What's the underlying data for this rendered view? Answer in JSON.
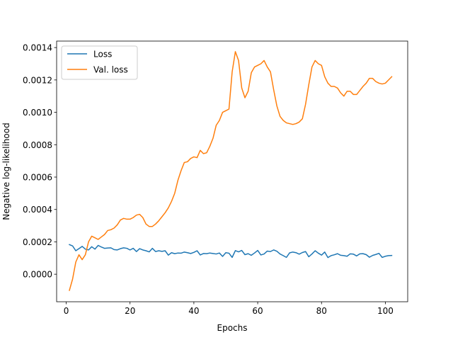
{
  "chart_data": {
    "type": "line",
    "title": "",
    "xlabel": "Epochs",
    "ylabel": "Negative log-likelihood",
    "xlim": [
      -3,
      107
    ],
    "ylim": [
      -0.00017,
      0.00144
    ],
    "xticks": [
      0,
      20,
      40,
      60,
      80,
      100
    ],
    "yticks": [
      0.0,
      0.0002,
      0.0004,
      0.0006,
      0.0008,
      0.001,
      0.0012,
      0.0014
    ],
    "ytick_labels": [
      "0.0000",
      "0.0002",
      "0.0004",
      "0.0006",
      "0.0008",
      "0.0010",
      "0.0012",
      "0.0014"
    ],
    "grid": false,
    "legend_position": "top-left",
    "series": [
      {
        "name": "Loss",
        "color": "#1f77b4",
        "x": [
          1,
          2,
          3,
          4,
          5,
          6,
          7,
          8,
          9,
          10,
          11,
          12,
          13,
          14,
          15,
          16,
          17,
          18,
          19,
          20,
          21,
          22,
          23,
          24,
          25,
          26,
          27,
          28,
          29,
          30,
          31,
          32,
          33,
          34,
          35,
          36,
          37,
          38,
          39,
          40,
          41,
          42,
          43,
          44,
          45,
          46,
          47,
          48,
          49,
          50,
          51,
          52,
          53,
          54,
          55,
          56,
          57,
          58,
          59,
          60,
          61,
          62,
          63,
          64,
          65,
          66,
          67,
          68,
          69,
          70,
          71,
          72,
          73,
          74,
          75,
          76,
          77,
          78,
          79,
          80,
          81,
          82,
          83,
          84,
          85,
          86,
          87,
          88,
          89,
          90,
          91,
          92,
          93,
          94,
          95,
          96,
          97,
          98,
          99,
          100,
          101,
          102
        ],
        "y": [
          0.000183,
          0.000175,
          0.000145,
          0.000158,
          0.000172,
          0.000155,
          0.00015,
          0.00017,
          0.000155,
          0.000178,
          0.000168,
          0.00016,
          0.000162,
          0.000163,
          0.000152,
          0.00015,
          0.000158,
          0.000163,
          0.00016,
          0.00015,
          0.00016,
          0.00014,
          0.000158,
          0.00015,
          0.000145,
          0.000138,
          0.00016,
          0.00014,
          0.000145,
          0.000141,
          0.000145,
          0.000118,
          0.000133,
          0.000127,
          0.000131,
          0.00013,
          0.000137,
          0.000133,
          0.000128,
          0.000135,
          0.000145,
          0.000119,
          0.000128,
          0.000127,
          0.000131,
          0.000128,
          0.000125,
          0.000131,
          0.00011,
          0.000133,
          0.00013,
          0.000104,
          0.000146,
          0.000138,
          0.000147,
          0.000121,
          0.000127,
          0.000117,
          0.000131,
          0.000147,
          0.000119,
          0.000125,
          0.000143,
          0.00014,
          0.00015,
          0.000142,
          0.000125,
          0.000115,
          0.000104,
          0.000132,
          0.000137,
          0.000133,
          0.000124,
          0.000134,
          0.00014,
          0.000108,
          0.000125,
          0.000145,
          0.00013,
          0.000118,
          0.000137,
          0.000103,
          0.000115,
          0.00012,
          0.000127,
          0.000117,
          0.000115,
          0.000111,
          0.000126,
          0.000124,
          0.000113,
          0.000126,
          0.000127,
          0.000121,
          0.000105,
          0.000116,
          0.000122,
          0.000129,
          0.000104,
          0.000111,
          0.000115,
          0.000116
        ],
        "note": ""
      },
      {
        "name": "Val. loss",
        "color": "#ff7f0e",
        "x": [
          1,
          2,
          3,
          4,
          5,
          6,
          7,
          8,
          9,
          10,
          11,
          12,
          13,
          14,
          15,
          16,
          17,
          18,
          19,
          20,
          21,
          22,
          23,
          24,
          25,
          26,
          27,
          28,
          29,
          30,
          31,
          32,
          33,
          34,
          35,
          36,
          37,
          38,
          39,
          40,
          41,
          42,
          43,
          44,
          45,
          46,
          47,
          48,
          49,
          50,
          51,
          52,
          53,
          54,
          55,
          56,
          57,
          58,
          59,
          60,
          61,
          62,
          63,
          64,
          65,
          66,
          67,
          68,
          69,
          70,
          71,
          72,
          73,
          74,
          75,
          76,
          77,
          78,
          79,
          80,
          81,
          82,
          83,
          84,
          85,
          86,
          87,
          88,
          89,
          90,
          91,
          92,
          93,
          94,
          95,
          96,
          97,
          98,
          99,
          100,
          101,
          102
        ],
        "y": [
          -0.0001,
          -3e-05,
          7.5e-05,
          0.00012,
          9e-05,
          0.00012,
          0.0002,
          0.000235,
          0.000225,
          0.000215,
          0.00023,
          0.000245,
          0.00027,
          0.000275,
          0.000285,
          0.000305,
          0.000335,
          0.000345,
          0.00034,
          0.00034,
          0.00035,
          0.000365,
          0.00037,
          0.00035,
          0.00031,
          0.000295,
          0.000295,
          0.00031,
          0.00033,
          0.000355,
          0.00038,
          0.00041,
          0.00045,
          0.0005,
          0.00058,
          0.00064,
          0.00069,
          0.000695,
          0.000715,
          0.000725,
          0.00072,
          0.000765,
          0.000745,
          0.00075,
          0.00079,
          0.00084,
          0.00092,
          0.00095,
          0.001,
          0.00101,
          0.00102,
          0.00125,
          0.001375,
          0.00132,
          0.00115,
          0.00109,
          0.00113,
          0.001245,
          0.00128,
          0.00129,
          0.0013,
          0.00132,
          0.00128,
          0.00125,
          0.00114,
          0.00104,
          0.000975,
          0.00095,
          0.000935,
          0.00093,
          0.000925,
          0.00093,
          0.00094,
          0.00096,
          0.00105,
          0.00117,
          0.00128,
          0.00132,
          0.0013,
          0.00129,
          0.00122,
          0.00118,
          0.00116,
          0.00116,
          0.00115,
          0.00112,
          0.0011,
          0.00113,
          0.00113,
          0.00111,
          0.00111,
          0.001135,
          0.00116,
          0.00118,
          0.00121,
          0.00121,
          0.00119,
          0.00118,
          0.001175,
          0.00118,
          0.0012,
          0.00122
        ],
        "note": ""
      }
    ]
  }
}
